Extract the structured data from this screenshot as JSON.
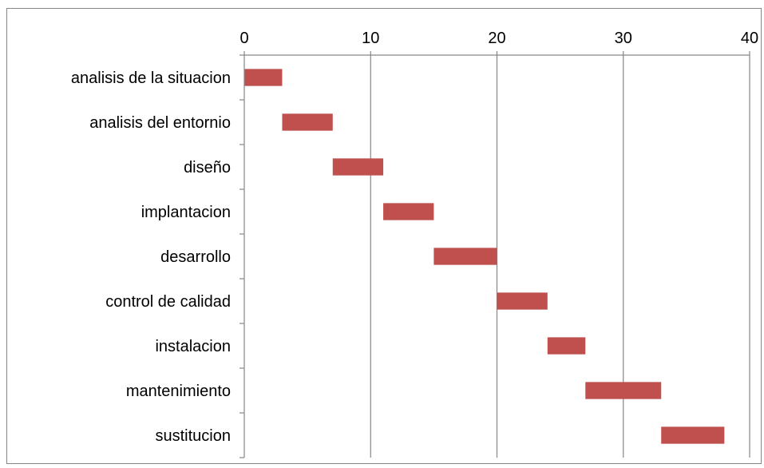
{
  "chart_data": {
    "type": "bar",
    "subtype": "gantt",
    "title": "",
    "xlabel": "",
    "ylabel": "",
    "xlim": [
      0,
      40
    ],
    "x_ticks": [
      0,
      10,
      20,
      30,
      40
    ],
    "x_axis_position": "top",
    "grid": "vertical major gridlines",
    "legend": "none",
    "categories": [
      "analisis de la situacion",
      "analisis del entornio",
      "diseño",
      "implantacion",
      "desarrollo",
      "control de calidad",
      "instalacion",
      "mantenimiento",
      "sustitucion"
    ],
    "start": [
      0,
      3,
      7,
      11,
      15,
      20,
      24,
      27,
      33
    ],
    "duration": [
      3,
      4,
      4,
      4,
      5,
      4,
      3,
      6,
      5
    ],
    "end": [
      3,
      7,
      11,
      15,
      20,
      24,
      27,
      33,
      38
    ],
    "bar_color": "#C0504D"
  },
  "colors": {
    "bar": "#C0504D",
    "gridline": "#868686",
    "axis": "#868686",
    "frame_border": "#868686",
    "text": "#000000"
  }
}
